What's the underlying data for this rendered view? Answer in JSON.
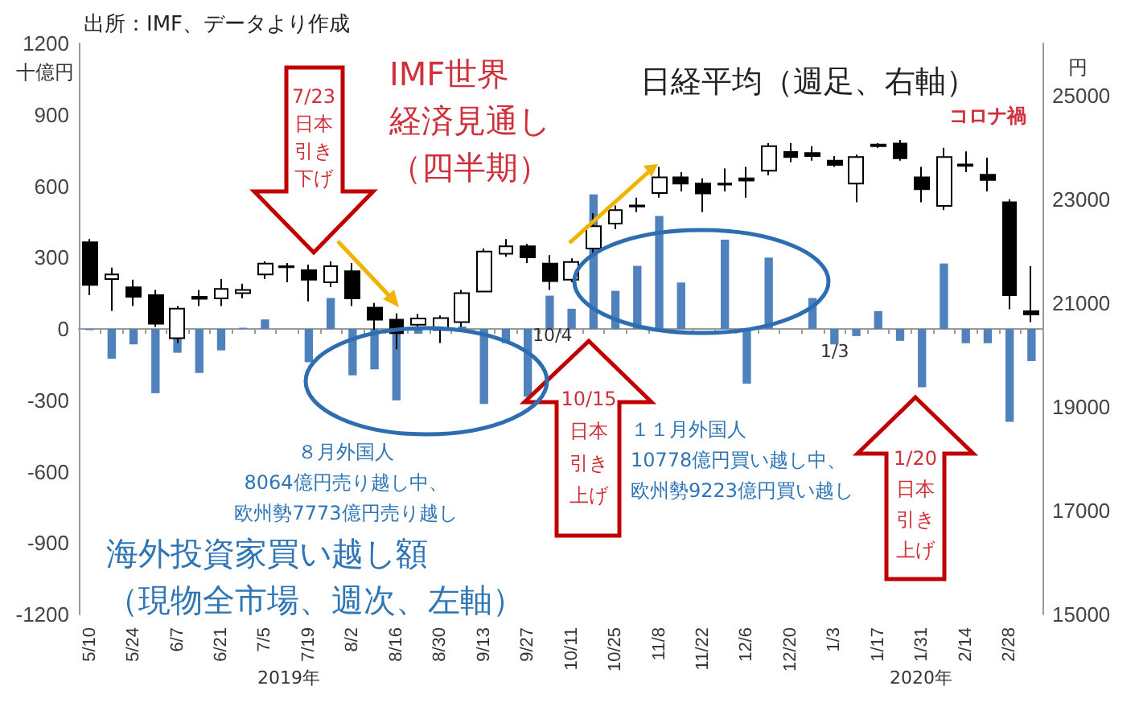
{
  "chart_data": {
    "type": "bar",
    "categories": [
      "5/10",
      null,
      "5/24",
      null,
      "6/7",
      null,
      "6/21",
      null,
      "7/5",
      null,
      "7/19",
      null,
      "8/2",
      null,
      "8/16",
      null,
      "8/30",
      null,
      "9/13",
      null,
      "9/27",
      null,
      "10/11",
      null,
      "10/25",
      null,
      "11/8",
      null,
      "11/22",
      null,
      "12/6",
      null,
      "12/20",
      null,
      "1/3",
      null,
      "1/17",
      null,
      "1/31",
      null,
      "2/14",
      null,
      "2/28",
      null
    ],
    "ylabel": "十億円",
    "y2label": "円",
    "ylim": [
      -1200,
      1200
    ],
    "yticks": [
      -1200,
      -900,
      -600,
      -300,
      0,
      300,
      600,
      900,
      1200
    ],
    "y2lim": [
      15000,
      26000
    ],
    "y2ticks": [
      15000,
      17000,
      19000,
      21000,
      23000,
      25000
    ],
    "series": [
      {
        "type": "bar",
        "color": "#4f81bd",
        "values": [
          -5,
          -125,
          -65,
          -270,
          -100,
          -185,
          -90,
          5,
          40,
          0,
          -140,
          130,
          -195,
          -170,
          -300,
          -20,
          null,
          10,
          -315,
          -60,
          -285,
          140,
          85,
          565,
          160,
          265,
          475,
          195,
          null,
          375,
          -230,
          300,
          0,
          130,
          -65,
          -30,
          75,
          -50,
          -245,
          275,
          -60,
          -60,
          -390,
          -135
        ]
      },
      {
        "type": "candlestick",
        "axis": "y2",
        "color": "#000000",
        "ohlc": [
          [
            22170,
            22230,
            21150,
            21350
          ],
          [
            21460,
            21680,
            20850,
            21550
          ],
          [
            21300,
            21450,
            20940,
            21120
          ],
          [
            21150,
            21250,
            20540,
            20600
          ],
          [
            20320,
            20940,
            20230,
            20890
          ],
          [
            21120,
            21250,
            20940,
            21080
          ],
          [
            21090,
            21460,
            20940,
            21270
          ],
          [
            21190,
            21370,
            21090,
            21250
          ],
          [
            21550,
            21800,
            21460,
            21760
          ],
          [
            21710,
            21770,
            21400,
            21690
          ],
          [
            21630,
            21740,
            21030,
            21450
          ],
          [
            21400,
            21800,
            21310,
            21710
          ],
          [
            21610,
            21770,
            20940,
            21090
          ],
          [
            20910,
            21000,
            20480,
            20680
          ],
          [
            20680,
            20800,
            20110,
            20420
          ],
          [
            20580,
            20790,
            20480,
            20700
          ],
          [
            20480,
            20760,
            20230,
            20710
          ],
          [
            20630,
            21250,
            20540,
            21190
          ],
          [
            21220,
            22050,
            21220,
            21990
          ],
          [
            21950,
            22230,
            21890,
            22090
          ],
          [
            22090,
            22140,
            21770,
            21880
          ],
          [
            21760,
            21920,
            21250,
            21420
          ],
          [
            21450,
            21860,
            21400,
            21790
          ],
          [
            22050,
            22730,
            21920,
            22480
          ],
          [
            22530,
            22880,
            22420,
            22790
          ],
          [
            22860,
            23030,
            22750,
            22880
          ],
          [
            23120,
            23620,
            23030,
            23420
          ],
          [
            23420,
            23520,
            23150,
            23300
          ],
          [
            23300,
            23400,
            22750,
            23110
          ],
          [
            23280,
            23590,
            23150,
            23300
          ],
          [
            23400,
            23620,
            23030,
            23360
          ],
          [
            23550,
            24080,
            23460,
            24020
          ],
          [
            23910,
            24080,
            23710,
            23810
          ],
          [
            23890,
            24020,
            23740,
            23830
          ],
          [
            23740,
            23830,
            23620,
            23660
          ],
          [
            23300,
            23860,
            22940,
            23810
          ],
          [
            24020,
            24080,
            23990,
            24050
          ],
          [
            24070,
            24140,
            23740,
            23790
          ],
          [
            23420,
            23620,
            22940,
            23190
          ],
          [
            22870,
            23990,
            22790,
            23810
          ],
          [
            23640,
            23920,
            23520,
            23670
          ],
          [
            23470,
            23800,
            23150,
            23370
          ],
          [
            22940,
            23000,
            20880,
            21150
          ],
          [
            20840,
            21710,
            20630,
            20780
          ]
        ]
      }
    ],
    "annotations": [
      "出所：IMF、データより作成",
      "IMF世界経済見通し（四半期）",
      "日経平均（週足、右軸）",
      "コロナ禍",
      "7/23日本引き下げ",
      "10/4",
      "10/15日本引き上げ",
      "1/20日本引き上げ",
      "８月外国人8064億円売り越し中、欧州勢7773億円売り越し",
      "１１月外国人10778億円買い越し中、欧州勢9223億円買い越し",
      "海外投資家買い越し額（現物全市場、週次、左軸）",
      "1/3",
      "2019年",
      "2020年"
    ]
  }
}
